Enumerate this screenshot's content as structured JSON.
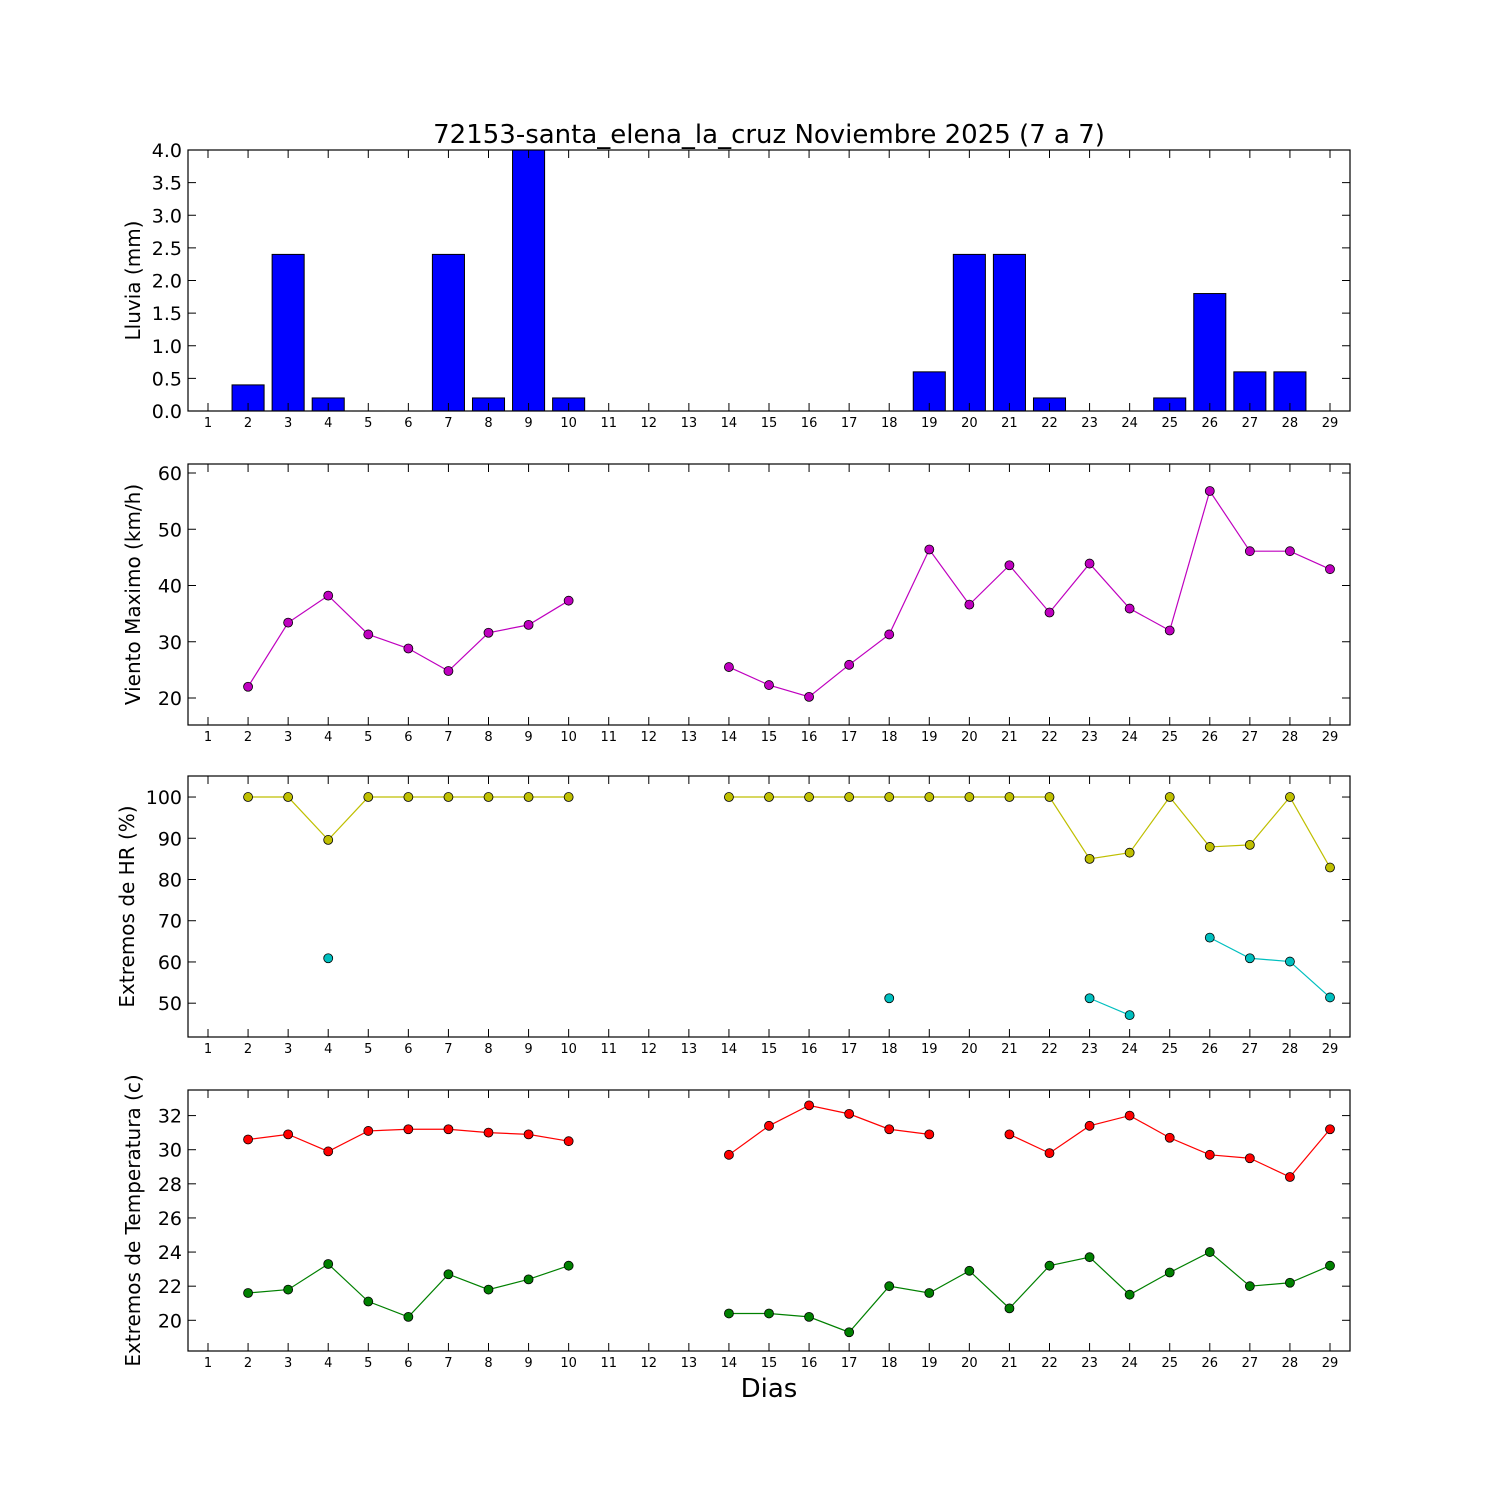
{
  "chart_data": {
    "title": "72153-santa_elena_la_cruz Noviembre 2025  (7 a 7)",
    "xlabel": "Dias",
    "days": [
      1,
      2,
      3,
      4,
      5,
      6,
      7,
      8,
      9,
      10,
      11,
      12,
      13,
      14,
      15,
      16,
      17,
      18,
      19,
      20,
      21,
      22,
      23,
      24,
      25,
      26,
      27,
      28,
      29
    ],
    "panels": [
      {
        "type": "bar",
        "ylabel": "Lluvia (mm)",
        "ylim": [
          0,
          4.0
        ],
        "yticks": [
          0.0,
          0.5,
          1.0,
          1.5,
          2.0,
          2.5,
          3.0,
          3.5,
          4.0
        ],
        "tick_decimals": 1,
        "series": [
          {
            "name": "Lluvia",
            "color": "#0000ff",
            "values": [
              null,
              0.4,
              2.4,
              0.2,
              0,
              0,
              2.4,
              0.2,
              4.0,
              0.2,
              0,
              0,
              0,
              0,
              0,
              0,
              0,
              0,
              0.6,
              2.4,
              2.4,
              0.2,
              0,
              0,
              0.2,
              1.8,
              0.6,
              0.6,
              null
            ]
          }
        ]
      },
      {
        "type": "line",
        "ylabel": "Viento Maximo (km/h)",
        "ylim": [
          15.2,
          61.6
        ],
        "yticks": [
          20,
          30,
          40,
          50,
          60
        ],
        "tick_decimals": 0,
        "series": [
          {
            "name": "Viento Maximo",
            "color": "#bf00bf",
            "values": [
              null,
              22.0,
              33.4,
              38.2,
              31.3,
              28.8,
              24.8,
              31.6,
              33.0,
              37.3,
              null,
              null,
              null,
              25.5,
              22.3,
              20.2,
              25.9,
              31.3,
              46.4,
              36.6,
              43.6,
              35.2,
              43.9,
              35.9,
              32.0,
              56.8,
              46.1,
              46.1,
              42.9
            ]
          }
        ]
      },
      {
        "type": "line",
        "ylabel": "Extremos de HR (%)",
        "ylim": [
          41.8,
          105.1
        ],
        "yticks": [
          50,
          60,
          70,
          80,
          90,
          100
        ],
        "tick_decimals": 0,
        "series": [
          {
            "name": "HR maxima",
            "color": "#bfbf00",
            "values": [
              null,
              100,
              100,
              89.6,
              100,
              100,
              100,
              100,
              100,
              100,
              null,
              null,
              null,
              100,
              100,
              100,
              100,
              100,
              100,
              100,
              100,
              100,
              85.0,
              86.5,
              100,
              87.9,
              88.4,
              100,
              82.9
            ]
          },
          {
            "name": "HR minima",
            "color": "#00bfbf",
            "values": [
              null,
              null,
              null,
              60.9,
              null,
              null,
              null,
              null,
              null,
              null,
              null,
              null,
              null,
              null,
              null,
              null,
              null,
              51.2,
              null,
              null,
              null,
              null,
              51.2,
              47.1,
              null,
              65.9,
              60.9,
              60.1,
              51.4
            ]
          }
        ]
      },
      {
        "type": "line",
        "ylabel": "Extremos de Temperatura (c)",
        "ylim": [
          18.2,
          33.5
        ],
        "yticks": [
          20,
          22,
          24,
          26,
          28,
          30,
          32
        ],
        "tick_decimals": 0,
        "series": [
          {
            "name": "Temperatura maxima",
            "color": "#ff0000",
            "values": [
              null,
              30.6,
              30.9,
              29.9,
              31.1,
              31.2,
              31.2,
              31.0,
              30.9,
              30.5,
              null,
              null,
              null,
              29.7,
              31.4,
              32.6,
              32.1,
              31.2,
              30.9,
              null,
              30.9,
              29.8,
              31.4,
              32.0,
              30.7,
              29.7,
              29.5,
              28.4,
              31.2
            ]
          },
          {
            "name": "Temperatura minima",
            "color": "#008000",
            "values": [
              null,
              21.6,
              21.8,
              23.3,
              21.1,
              20.2,
              22.7,
              21.8,
              22.4,
              23.2,
              null,
              null,
              null,
              20.4,
              20.4,
              20.2,
              19.3,
              22.0,
              21.6,
              22.9,
              20.7,
              23.2,
              23.7,
              21.5,
              22.8,
              24.0,
              22.0,
              22.2,
              23.2
            ]
          }
        ]
      }
    ]
  }
}
